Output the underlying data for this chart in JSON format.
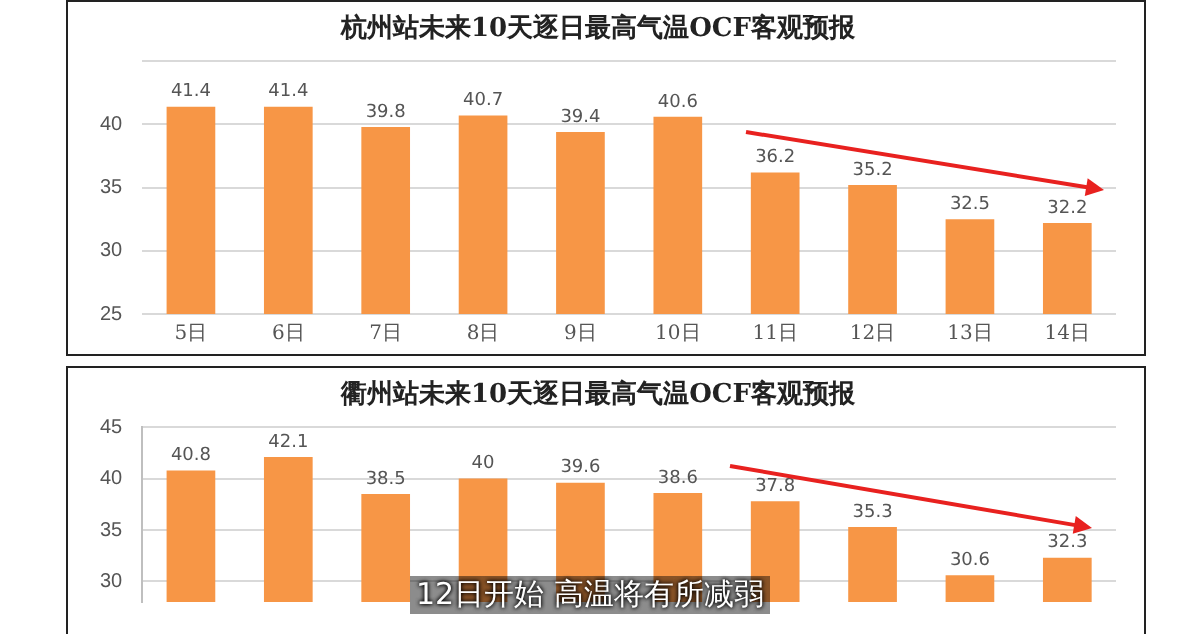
{
  "chart_data": [
    {
      "type": "bar",
      "title": "杭州站未来10天逐日最高气温OCF客观预报",
      "categories": [
        "5日",
        "6日",
        "7日",
        "8日",
        "9日",
        "10日",
        "11日",
        "12日",
        "13日",
        "14日"
      ],
      "values": [
        41.4,
        41.4,
        39.8,
        40.7,
        39.4,
        40.6,
        36.2,
        35.2,
        32.5,
        32.2
      ],
      "color": "#f79646",
      "ylim": [
        25,
        45
      ],
      "yticks": [
        25,
        30,
        35,
        40,
        {
          "value": 45,
          "label": null
        }
      ],
      "grid": "y",
      "data_labels": true
    },
    {
      "type": "bar",
      "title": "衢州站未来10天逐日最高气温OCF客观预报",
      "categories": [
        null,
        null,
        null,
        null,
        null,
        null,
        null,
        null,
        null,
        null
      ],
      "values": [
        40.8,
        42.1,
        38.5,
        40,
        39.6,
        38.6,
        37.8,
        35.3,
        30.6,
        32.3
      ],
      "color": "#f79646",
      "ylim": [
        28,
        45
      ],
      "yticks": [
        30,
        35,
        40,
        45
      ],
      "grid": "y",
      "data_labels": true,
      "tick_labels": "y",
      "annotations": [
        "12日开始 高温将有所减弱"
      ]
    }
  ]
}
